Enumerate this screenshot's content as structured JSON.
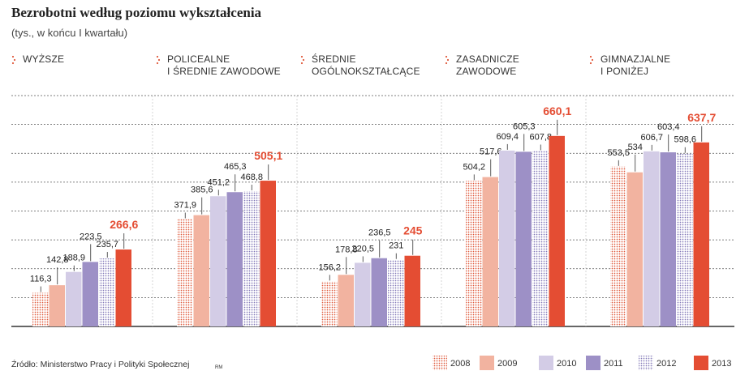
{
  "chart_data": {
    "type": "bar",
    "title": "Bezrobotni  według poziomu wykształcenia",
    "subtitle": "(tys., w końcu I kwartału)",
    "source": "Źródło: Ministerstwo Pracy i Polityki Społecznej",
    "credit": "RM",
    "categories": [
      "WYŻSZE",
      "POLICEALNE\nI ŚREDNIE ZAWODOWE",
      "ŚREDNIE\nOGÓLNOKSZTAŁCĄCE",
      "ZASADNICZE\nZAWODOWE",
      "GIMNAZJALNE\nI PONIŻEJ"
    ],
    "ylim": [
      0,
      800
    ],
    "yticks": [
      0,
      100,
      200,
      300,
      400,
      500,
      600,
      700,
      800
    ],
    "grid": true,
    "series": [
      {
        "name": "2008",
        "color": "#e05a3c",
        "pattern": "dots",
        "values": [
          116.3,
          371.9,
          156.2,
          504.2,
          553.5
        ],
        "value_labels": [
          "116,3",
          "371,9",
          "156,2",
          "504,2",
          "553,5"
        ]
      },
      {
        "name": "2009",
        "color": "#f2b3a0",
        "values": [
          142.8,
          385.6,
          178.8,
          517.6,
          534
        ],
        "value_labels": [
          "142,8",
          "385,6",
          "178,8",
          "517,6",
          "534"
        ]
      },
      {
        "name": "2010",
        "color": "#d3cce6",
        "values": [
          188.9,
          451.2,
          220.5,
          609.4,
          606.7
        ],
        "value_labels": [
          "188,9",
          "451,2",
          "220,5",
          "609,4",
          "606,7"
        ]
      },
      {
        "name": "2011",
        "color": "#9d90c6",
        "values": [
          223.5,
          465.3,
          236.5,
          605.3,
          603.4
        ],
        "value_labels": [
          "223,5",
          "465,3",
          "236,5",
          "605,3",
          "603,4"
        ]
      },
      {
        "name": "2012",
        "color": "#8379b8",
        "pattern": "dots",
        "values": [
          235.7,
          468.8,
          231,
          607.8,
          598.6
        ],
        "value_labels": [
          "235,7",
          "468,8",
          "231",
          "607,8",
          "598,6"
        ]
      },
      {
        "name": "2013",
        "color": "#e44d33",
        "highlight": true,
        "values": [
          266.6,
          505.1,
          245,
          660.1,
          637.7
        ],
        "value_labels": [
          "266,6",
          "505,1",
          "245",
          "660,1",
          "637,7"
        ]
      }
    ]
  }
}
